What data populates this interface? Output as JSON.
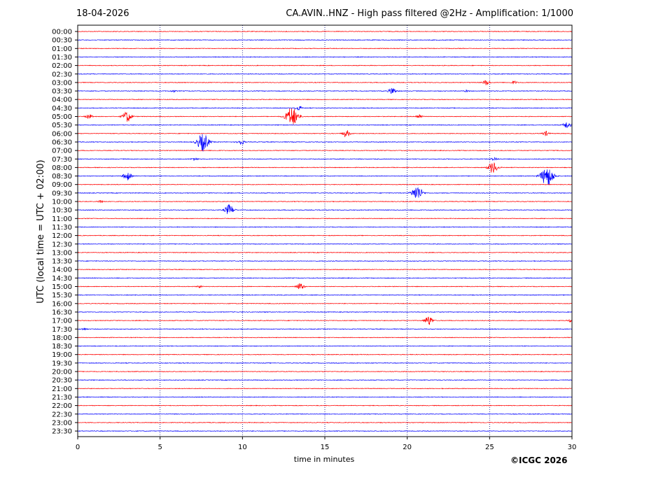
{
  "header": {
    "date": "18-04-2026",
    "title": "CA.AVIN..HNZ - High pass filtered @2Hz - Amplification: 1/1000"
  },
  "credit": "©ICGC 2026",
  "chart_data": {
    "type": "line",
    "title": "CA.AVIN..HNZ - High pass filtered @2Hz - Amplification: 1/1000",
    "xlabel": "time in minutes",
    "ylabel": "UTC (local time = UTC + 02:00)",
    "xlim": [
      0,
      30
    ],
    "xticks": [
      0,
      5,
      10,
      15,
      20,
      25,
      30
    ],
    "grid": "vertical dotted lines at x ticks",
    "trace_colors": [
      "#ff0000",
      "#0000ff"
    ],
    "rows": [
      "00:00",
      "00:30",
      "01:00",
      "01:30",
      "02:00",
      "02:30",
      "03:00",
      "03:30",
      "04:00",
      "04:30",
      "05:00",
      "05:30",
      "06:00",
      "06:30",
      "07:00",
      "07:30",
      "08:00",
      "08:30",
      "09:00",
      "09:30",
      "10:00",
      "10:30",
      "11:00",
      "11:30",
      "12:00",
      "12:30",
      "13:00",
      "13:30",
      "14:00",
      "14:30",
      "15:00",
      "15:30",
      "16:00",
      "16:30",
      "17:00",
      "17:30",
      "18:00",
      "18:30",
      "19:00",
      "19:30",
      "20:00",
      "20:30",
      "21:00",
      "21:30",
      "22:00",
      "22:30",
      "23:00",
      "23:30"
    ],
    "events": [
      {
        "row": "03:00",
        "minute": 24.8,
        "amp": 0.35
      },
      {
        "row": "03:00",
        "minute": 26.5,
        "amp": 0.2
      },
      {
        "row": "03:30",
        "minute": 5.8,
        "amp": 0.12
      },
      {
        "row": "03:30",
        "minute": 19.1,
        "amp": 0.45
      },
      {
        "row": "03:30",
        "minute": 23.6,
        "amp": 0.1
      },
      {
        "row": "04:30",
        "minute": 13.4,
        "amp": 0.3
      },
      {
        "row": "05:00",
        "minute": 0.7,
        "amp": 0.3
      },
      {
        "row": "05:00",
        "minute": 3.0,
        "amp": 0.7
      },
      {
        "row": "05:00",
        "minute": 13.0,
        "amp": 1.25
      },
      {
        "row": "05:00",
        "minute": 20.7,
        "amp": 0.3
      },
      {
        "row": "05:30",
        "minute": 29.7,
        "amp": 0.45
      },
      {
        "row": "06:00",
        "minute": 16.3,
        "amp": 0.45
      },
      {
        "row": "06:00",
        "minute": 28.4,
        "amp": 0.3
      },
      {
        "row": "06:30",
        "minute": 7.6,
        "amp": 1.15
      },
      {
        "row": "06:30",
        "minute": 9.9,
        "amp": 0.35
      },
      {
        "row": "07:30",
        "minute": 7.1,
        "amp": 0.2
      },
      {
        "row": "07:30",
        "minute": 25.3,
        "amp": 0.2
      },
      {
        "row": "08:00",
        "minute": 25.2,
        "amp": 0.75
      },
      {
        "row": "08:30",
        "minute": 3.0,
        "amp": 0.55
      },
      {
        "row": "08:30",
        "minute": 28.5,
        "amp": 1.3
      },
      {
        "row": "09:30",
        "minute": 20.6,
        "amp": 0.95
      },
      {
        "row": "10:00",
        "minute": 1.4,
        "amp": 0.2
      },
      {
        "row": "10:30",
        "minute": 9.2,
        "amp": 0.7
      },
      {
        "row": "15:00",
        "minute": 7.4,
        "amp": 0.15
      },
      {
        "row": "15:00",
        "minute": 13.5,
        "amp": 0.45
      },
      {
        "row": "17:00",
        "minute": 21.3,
        "amp": 0.6
      },
      {
        "row": "17:00",
        "minute": 29.9,
        "amp": 0.15
      },
      {
        "row": "17:30",
        "minute": 0.4,
        "amp": 0.15
      }
    ]
  }
}
